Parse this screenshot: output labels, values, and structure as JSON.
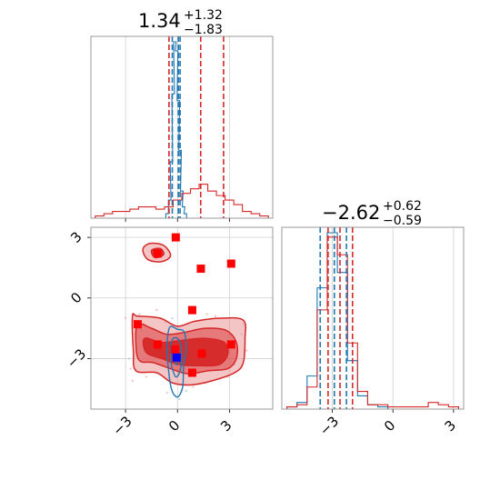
{
  "chart_data": {
    "type": "corner",
    "grid": true,
    "colors": {
      "red": "#d62728",
      "blue": "#1f77b4",
      "marker_red": "#ff0000",
      "marker_blue": "#0000ff"
    },
    "params": [
      {
        "title": {
          "value": "1.34",
          "plus": "+1.32",
          "minus": "−1.83"
        },
        "range": [
          -5,
          5.5
        ],
        "ticks": [
          {
            "v": -3,
            "label": "−3"
          },
          {
            "v": 0,
            "label": "0"
          },
          {
            "v": 3,
            "label": "3"
          }
        ],
        "quantiles": {
          "red": [
            -0.49,
            1.34,
            2.66
          ],
          "blue": [
            -0.3,
            0.05,
            0.15
          ]
        },
        "hist_red": [
          {
            "x": -4.5,
            "w": 0.01
          },
          {
            "x": -4.0,
            "w": 0.02
          },
          {
            "x": -3.5,
            "w": 0.03
          },
          {
            "x": -3.0,
            "w": 0.03
          },
          {
            "x": -2.5,
            "w": 0.04
          },
          {
            "x": -2.0,
            "w": 0.05
          },
          {
            "x": -1.5,
            "w": 0.05
          },
          {
            "x": -1.0,
            "w": 0.04
          },
          {
            "x": -0.5,
            "w": 0.05
          },
          {
            "x": 0.0,
            "w": 0.08
          },
          {
            "x": 0.5,
            "w": 0.11
          },
          {
            "x": 1.0,
            "w": 0.13
          },
          {
            "x": 1.5,
            "w": 0.15
          },
          {
            "x": 2.0,
            "w": 0.12
          },
          {
            "x": 2.5,
            "w": 0.1
          },
          {
            "x": 3.0,
            "w": 0.08
          },
          {
            "x": 3.5,
            "w": 0.06
          },
          {
            "x": 4.0,
            "w": 0.03
          },
          {
            "x": 4.5,
            "w": 0.02
          },
          {
            "x": 5.0,
            "w": 0.01
          }
        ],
        "hist_blue": [
          {
            "x": -0.6,
            "w": 0.02
          },
          {
            "x": -0.45,
            "w": 0.08
          },
          {
            "x": -0.35,
            "w": 0.25
          },
          {
            "x": -0.25,
            "w": 0.55
          },
          {
            "x": -0.15,
            "w": 0.78
          },
          {
            "x": -0.05,
            "w": 0.74
          },
          {
            "x": 0.05,
            "w": 0.52
          },
          {
            "x": 0.15,
            "w": 0.3
          },
          {
            "x": 0.25,
            "w": 0.12
          },
          {
            "x": 0.35,
            "w": 0.05
          },
          {
            "x": 0.45,
            "w": 0.02
          }
        ]
      },
      {
        "title": {
          "value": "−2.62",
          "plus": "+0.62",
          "minus": "−0.59"
        },
        "range": [
          -5.5,
          3.5
        ],
        "ticks": [
          {
            "v": -3,
            "label": "−3"
          },
          {
            "v": 0,
            "label": "0"
          },
          {
            "v": 3,
            "label": "3"
          }
        ],
        "quantiles": {
          "red": [
            -3.21,
            -2.62,
            -2.0
          ],
          "blue": [
            -3.6,
            -2.9,
            -2.3
          ]
        },
        "hist_red": [
          {
            "x": -5.0,
            "w": 0.01
          },
          {
            "x": -4.5,
            "w": 0.02
          },
          {
            "x": -4.0,
            "w": 0.1
          },
          {
            "x": -3.5,
            "w": 0.45
          },
          {
            "x": -3.0,
            "w": 0.78
          },
          {
            "x": -2.5,
            "w": 0.7
          },
          {
            "x": -2.0,
            "w": 0.3
          },
          {
            "x": -1.5,
            "w": 0.08
          },
          {
            "x": -1.0,
            "w": 0.02
          },
          {
            "x": -0.5,
            "w": 0.02
          },
          {
            "x": 0.0,
            "w": 0.01
          },
          {
            "x": 0.5,
            "w": 0.01
          },
          {
            "x": 1.0,
            "w": 0.01
          },
          {
            "x": 1.5,
            "w": 0.01
          },
          {
            "x": 2.0,
            "w": 0.03
          },
          {
            "x": 2.5,
            "w": 0.02
          },
          {
            "x": 3.0,
            "w": 0.01
          }
        ],
        "hist_blue": [
          {
            "x": -5.0,
            "w": 0.01
          },
          {
            "x": -4.5,
            "w": 0.03
          },
          {
            "x": -4.0,
            "w": 0.15
          },
          {
            "x": -3.5,
            "w": 0.55
          },
          {
            "x": -3.0,
            "w": 0.8
          },
          {
            "x": -2.5,
            "w": 0.62
          },
          {
            "x": -2.0,
            "w": 0.22
          },
          {
            "x": -1.5,
            "w": 0.06
          },
          {
            "x": -1.0,
            "w": 0.02
          },
          {
            "x": -0.5,
            "w": 0.01
          }
        ]
      }
    ],
    "markers": {
      "red": [
        {
          "x": -2.3,
          "y": -1.3
        },
        {
          "x": -1.15,
          "y": -2.3
        },
        {
          "x": -1.15,
          "y": 2.2
        },
        {
          "x": -0.1,
          "y": 3.0
        },
        {
          "x": 1.35,
          "y": 1.45
        },
        {
          "x": 3.1,
          "y": 1.7
        },
        {
          "x": 0.85,
          "y": -0.6
        },
        {
          "x": -0.15,
          "y": -2.55
        },
        {
          "x": 1.4,
          "y": -2.75
        },
        {
          "x": 0.85,
          "y": -3.7
        },
        {
          "x": 3.1,
          "y": -2.3
        }
      ],
      "blue": [
        {
          "x": -0.05,
          "y": -2.95
        }
      ]
    },
    "contours_red": [
      {
        "level": "outer",
        "pts": [
          [
            -2.6,
            -0.9
          ],
          [
            -2.3,
            -0.9
          ],
          [
            -1.0,
            -1.0
          ],
          [
            0.0,
            -1.4
          ],
          [
            1.0,
            -1.15
          ],
          [
            2.5,
            -1.0
          ],
          [
            3.8,
            -1.1
          ],
          [
            3.9,
            -2.0
          ],
          [
            3.8,
            -3.2
          ],
          [
            3.3,
            -3.7
          ],
          [
            2.0,
            -4.1
          ],
          [
            0.8,
            -4.3
          ],
          [
            -0.3,
            -4.2
          ],
          [
            -1.2,
            -3.7
          ],
          [
            -2.4,
            -3.6
          ],
          [
            -2.55,
            -2.6
          ]
        ]
      },
      {
        "level": "mid",
        "pts": [
          [
            -2.3,
            -1.3
          ],
          [
            -1.5,
            -1.5
          ],
          [
            -0.6,
            -1.8
          ],
          [
            0.4,
            -1.7
          ],
          [
            1.6,
            -1.5
          ],
          [
            2.8,
            -1.6
          ],
          [
            3.4,
            -2.2
          ],
          [
            3.4,
            -3.0
          ],
          [
            2.9,
            -3.5
          ],
          [
            1.8,
            -3.6
          ],
          [
            0.6,
            -3.75
          ],
          [
            -0.4,
            -3.5
          ],
          [
            -1.4,
            -3.2
          ],
          [
            -2.2,
            -3.1
          ],
          [
            -2.4,
            -2.3
          ]
        ]
      },
      {
        "level": "inner",
        "pts": [
          [
            -1.9,
            -2.0
          ],
          [
            -0.9,
            -2.2
          ],
          [
            0.2,
            -2.1
          ],
          [
            1.6,
            -2.0
          ],
          [
            2.7,
            -2.2
          ],
          [
            2.9,
            -2.8
          ],
          [
            2.4,
            -3.3
          ],
          [
            1.3,
            -3.35
          ],
          [
            0.1,
            -3.3
          ],
          [
            -0.9,
            -3.0
          ],
          [
            -1.8,
            -2.7
          ]
        ]
      },
      {
        "level": "outer",
        "pts": [
          [
            -2.0,
            2.4
          ],
          [
            -1.6,
            2.7
          ],
          [
            -0.8,
            2.6
          ],
          [
            -0.4,
            2.1
          ],
          [
            -0.9,
            1.8
          ],
          [
            -1.7,
            1.9
          ]
        ]
      },
      {
        "level": "inner",
        "pts": [
          [
            -1.5,
            2.35
          ],
          [
            -1.0,
            2.45
          ],
          [
            -0.8,
            2.15
          ],
          [
            -1.3,
            2.0
          ]
        ]
      }
    ],
    "contours_blue": [
      {
        "pts": [
          [
            -0.45,
            -1.45
          ],
          [
            0.0,
            -1.55
          ],
          [
            0.4,
            -1.7
          ],
          [
            0.5,
            -2.6
          ],
          [
            0.35,
            -3.4
          ],
          [
            0.3,
            -4.4
          ],
          [
            0.0,
            -4.9
          ],
          [
            -0.35,
            -4.5
          ],
          [
            -0.55,
            -3.3
          ],
          [
            -0.6,
            -2.3
          ]
        ]
      },
      {
        "pts": [
          [
            -0.25,
            -2.0
          ],
          [
            0.1,
            -2.1
          ],
          [
            0.25,
            -2.8
          ],
          [
            0.15,
            -3.6
          ],
          [
            -0.1,
            -3.9
          ],
          [
            -0.35,
            -3.3
          ],
          [
            -0.4,
            -2.5
          ]
        ]
      },
      {
        "pts": [
          [
            -0.1,
            -2.6
          ],
          [
            0.05,
            -2.7
          ],
          [
            0.05,
            -3.2
          ],
          [
            -0.12,
            -3.25
          ]
        ]
      }
    ],
    "scatter_red": [
      [
        -3.0,
        -1.0
      ],
      [
        -2.7,
        -3.5
      ],
      [
        -1.8,
        -3.9
      ],
      [
        -2.2,
        -0.8
      ],
      [
        -0.5,
        -4.0
      ],
      [
        1.6,
        -4.2
      ],
      [
        2.9,
        -3.9
      ],
      [
        3.8,
        -1.3
      ],
      [
        4.0,
        -2.6
      ],
      [
        -1.2,
        -0.6
      ],
      [
        1.7,
        -0.8
      ],
      [
        -2.6,
        -4.1
      ],
      [
        0.9,
        -4.4
      ],
      [
        2.2,
        -0.9
      ]
    ],
    "scatter_blue": [
      [
        -0.7,
        -1.2
      ],
      [
        0.6,
        -1.3
      ],
      [
        -0.6,
        -4.7
      ],
      [
        0.5,
        -4.6
      ],
      [
        0.1,
        -5.0
      ],
      [
        -0.3,
        -1.0
      ],
      [
        -2.1,
        -1.6
      ],
      [
        -2.8,
        -3.0
      ],
      [
        3.3,
        -3.3
      ],
      [
        3.7,
        -1.8
      ]
    ]
  }
}
